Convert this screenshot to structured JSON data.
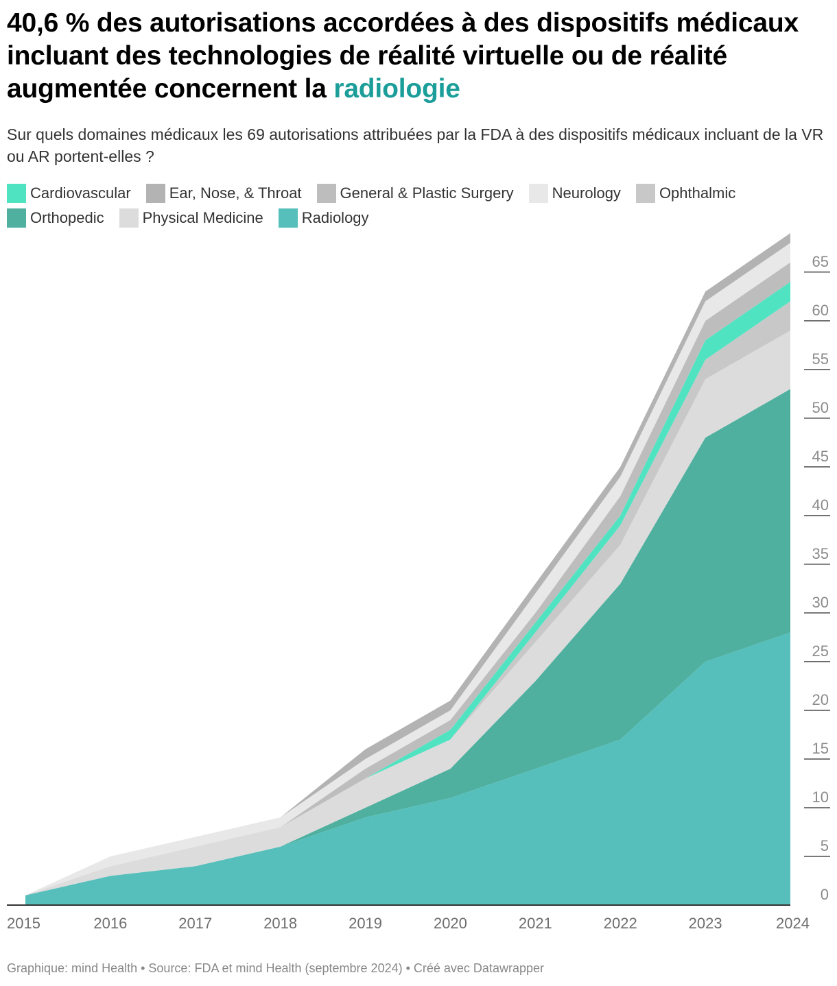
{
  "title": {
    "prefix": "40,6 % des autorisations accordées à des dispositifs médicaux incluant des technologies de réalité virtuelle ou de réalité augmentée concernent la ",
    "highlight": "radiologie",
    "highlight_color": "#1b9e99"
  },
  "subtitle": "Sur quels domaines médicaux les 69 autorisations attribuées par la FDA à des dispositifs médicaux incluant de la VR ou AR portent-elles ?",
  "footer": "Graphique: mind Health • Source: FDA et mind Health (septembre 2024) • Créé avec Datawrapper",
  "chart_data": {
    "type": "area",
    "stacked": true,
    "title": "40,6 % des autorisations accordées à des dispositifs médicaux incluant des technologies de réalité virtuelle ou de réalité augmentée concernent la radiologie",
    "x": [
      2015,
      2016,
      2017,
      2018,
      2019,
      2020,
      2021,
      2022,
      2023,
      2024
    ],
    "xlim": [
      2015,
      2024
    ],
    "ylim": [
      0,
      69
    ],
    "yticks": [
      0,
      5,
      10,
      15,
      20,
      25,
      30,
      35,
      40,
      45,
      50,
      55,
      60,
      65
    ],
    "y_axis_position": "right",
    "grid": true,
    "legend_position": "top",
    "series": [
      {
        "name": "Radiology",
        "color": "#56bfbb",
        "values": [
          1,
          3,
          4,
          6,
          9,
          11,
          14,
          17,
          25,
          28
        ]
      },
      {
        "name": "Orthopedic",
        "color": "#4fb09f",
        "values": [
          0,
          0,
          0,
          0,
          1,
          3,
          9,
          16,
          23,
          25
        ]
      },
      {
        "name": "Physical Medicine",
        "color": "#dcdcdc",
        "values": [
          0,
          1,
          2,
          2,
          3,
          3,
          4,
          4,
          6,
          6
        ]
      },
      {
        "name": "Ophthalmic",
        "color": "#c8c8c8",
        "values": [
          0,
          0,
          0,
          0,
          0,
          0,
          1,
          2,
          2,
          3
        ]
      },
      {
        "name": "Cardiovascular",
        "color": "#50e3c2",
        "values": [
          0,
          0,
          0,
          0,
          0,
          1,
          1,
          1,
          2,
          2
        ]
      },
      {
        "name": "General & Plastic Surgery",
        "color": "#bdbdbd",
        "values": [
          0,
          0,
          0,
          0,
          1,
          1,
          1,
          2,
          2,
          2
        ]
      },
      {
        "name": "Neurology",
        "color": "#e8e8e8",
        "values": [
          0,
          1,
          1,
          1,
          1,
          1,
          2,
          2,
          2,
          2
        ]
      },
      {
        "name": "Ear, Nose, & Throat",
        "color": "#b3b3b3",
        "values": [
          0,
          0,
          0,
          0,
          1,
          1,
          1,
          1,
          1,
          1
        ]
      }
    ],
    "legend_order": [
      "Cardiovascular",
      "Ear, Nose, & Throat",
      "General & Plastic Surgery",
      "Neurology",
      "Ophthalmic",
      "Orthopedic",
      "Physical Medicine",
      "Radiology"
    ]
  }
}
